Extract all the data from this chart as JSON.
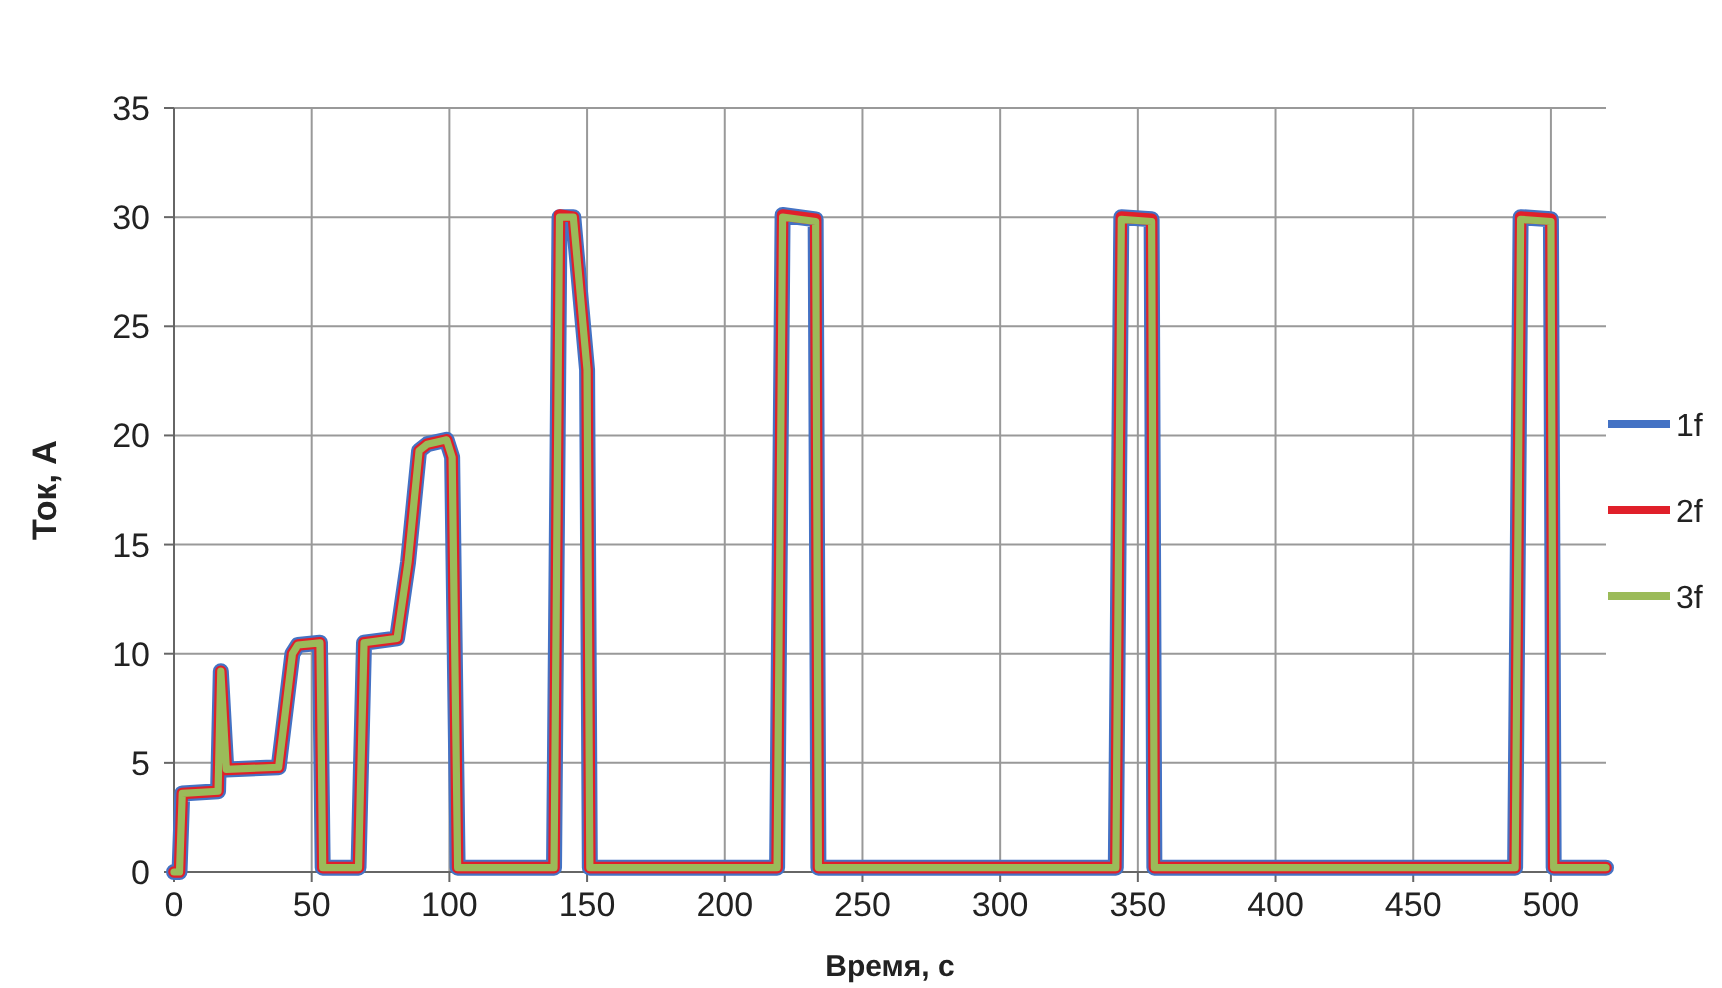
{
  "chart_data": {
    "type": "line",
    "xlabel": "Время, с",
    "ylabel": "Ток, А",
    "x": [
      0,
      2,
      3,
      16,
      17,
      19,
      38,
      43,
      45,
      53,
      54,
      55,
      67,
      69,
      81,
      85,
      89,
      92,
      99,
      101,
      103,
      104,
      138,
      140,
      145,
      150,
      151,
      152,
      219,
      221,
      233,
      234,
      235,
      342,
      344,
      355,
      356,
      357,
      487,
      489,
      500,
      501,
      502,
      520
    ],
    "series": [
      {
        "name": "1f",
        "color": "#4472c4",
        "values": [
          0,
          0,
          3.6,
          3.7,
          9.2,
          4.7,
          4.8,
          10,
          10.4,
          10.5,
          0.2,
          0.2,
          0.2,
          10.5,
          10.7,
          14.2,
          19.3,
          19.6,
          19.8,
          19,
          0.2,
          0.2,
          0.2,
          30,
          30,
          23,
          0.2,
          0.2,
          0.2,
          30.1,
          29.9,
          0.2,
          0.2,
          0.2,
          30,
          29.9,
          0.2,
          0.2,
          0.2,
          30,
          29.9,
          0.2,
          0.2,
          0.2
        ]
      },
      {
        "name": "2f",
        "color": "#e0202a",
        "values": [
          0,
          0,
          3.6,
          3.7,
          9.2,
          4.7,
          4.8,
          10,
          10.4,
          10.5,
          0.2,
          0.2,
          0.2,
          10.5,
          10.7,
          14.2,
          19.3,
          19.6,
          19.8,
          19,
          0.2,
          0.2,
          0.2,
          30.1,
          30,
          23,
          0.2,
          0.2,
          0.2,
          30.1,
          29.9,
          0.2,
          0.2,
          0.2,
          30,
          29.9,
          0.2,
          0.2,
          0.2,
          30,
          29.9,
          0.2,
          0.2,
          0.2
        ]
      },
      {
        "name": "3f",
        "color": "#9bbb59",
        "values": [
          0,
          0,
          3.6,
          3.7,
          9.2,
          4.7,
          4.8,
          10,
          10.4,
          10.5,
          0.2,
          0.2,
          0.2,
          10.5,
          10.7,
          14.2,
          19.3,
          19.6,
          19.8,
          19,
          0.2,
          0.2,
          0.2,
          30,
          30,
          23,
          0.2,
          0.2,
          0.2,
          30,
          29.8,
          0.2,
          0.2,
          0.2,
          29.9,
          29.8,
          0.2,
          0.2,
          0.2,
          29.9,
          29.8,
          0.2,
          0.2,
          0.2
        ]
      }
    ],
    "xlim": [
      0,
      520
    ],
    "xticks": [
      0,
      50,
      100,
      150,
      200,
      250,
      300,
      350,
      400,
      450,
      500
    ],
    "ylim": [
      0,
      35
    ],
    "yticks": [
      0,
      5,
      10,
      15,
      20,
      25,
      30,
      35
    ],
    "grid": true,
    "legend": "right",
    "marker": "none",
    "line_style": "solid"
  }
}
